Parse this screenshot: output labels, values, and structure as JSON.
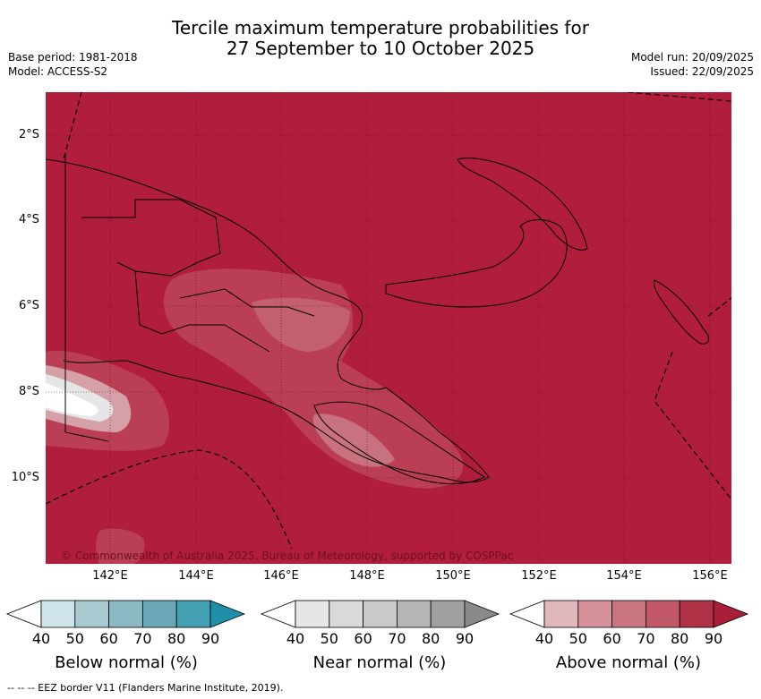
{
  "title_line1": "Tercile maximum temperature probabilities for",
  "title_line2": "27 September to 10 October 2025",
  "base_period": "Base period: 1981-2018",
  "model": "Model: ACCESS-S2",
  "model_run": "Model run: 20/09/2025",
  "issued": "Issued: 22/09/2025",
  "copyright": "© Commonwealth of Australia 2025, Bureau of Meteorology, supported by COSPPac",
  "lat_labels": [
    "2°S",
    "4°S",
    "6°S",
    "8°S",
    "10°S"
  ],
  "lon_labels": [
    "142°E",
    "144°E",
    "146°E",
    "148°E",
    "150°E",
    "152°E",
    "154°E",
    "156°E"
  ],
  "legends": [
    {
      "title": "Below normal (%)",
      "ticks": [
        "40",
        "50",
        "60",
        "70",
        "80",
        "90"
      ],
      "colors": [
        "#ffffff",
        "#cfe4ea",
        "#a8c9cf",
        "#8ab9c3",
        "#6aa8b7",
        "#44a0b3",
        "#1f8fa8"
      ]
    },
    {
      "title": "Near normal (%)",
      "ticks": [
        "40",
        "50",
        "60",
        "70",
        "80",
        "90"
      ],
      "colors": [
        "#ffffff",
        "#e6e6e6",
        "#d9d9d9",
        "#c9c9c9",
        "#b5b5b5",
        "#a0a0a0",
        "#8a8a8a"
      ]
    },
    {
      "title": "Above normal (%)",
      "ticks": [
        "40",
        "50",
        "60",
        "70",
        "80",
        "90"
      ],
      "colors": [
        "#ffffff",
        "#e1b7be",
        "#d6919b",
        "#c97580",
        "#c25968",
        "#b03146",
        "#a81d37"
      ]
    }
  ],
  "footer": "-- -- -- EEZ border V11 (Flanders Marine Institute, 2019).",
  "colors": {
    "map_fill": "#b01e3b"
  }
}
